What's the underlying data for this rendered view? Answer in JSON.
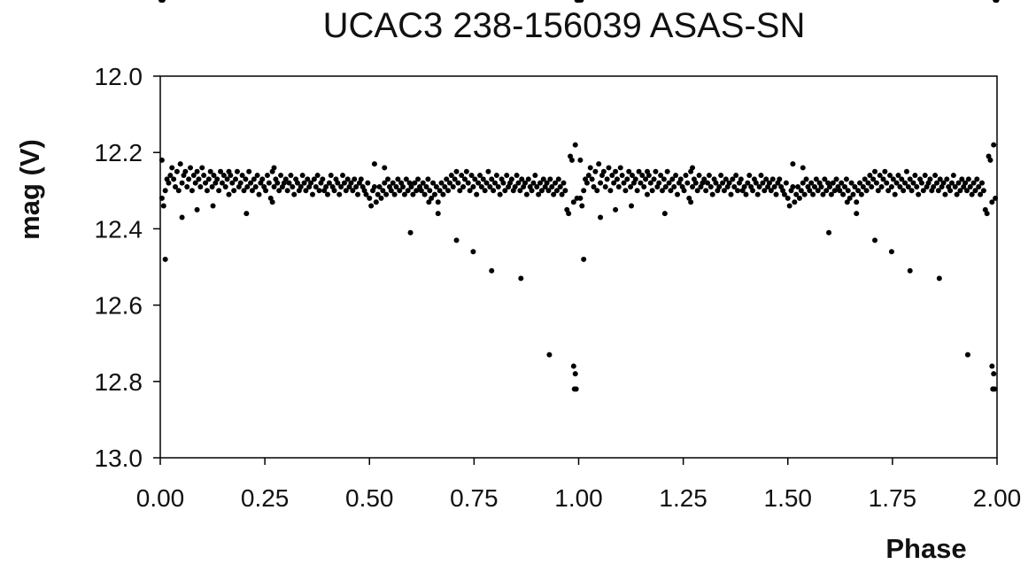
{
  "chart_data": {
    "type": "scatter",
    "title": "UCAC3 238-156039 ASAS-SN",
    "xlabel": "Phase",
    "ylabel": "mag (V)",
    "xlim": [
      0.0,
      2.0
    ],
    "ylim": [
      12.0,
      13.0
    ],
    "y_inverted": true,
    "grid": false,
    "legend": "none",
    "marker_color": "#000000",
    "axis_color": "#000000",
    "x_ticks": [
      "0.00",
      "0.25",
      "0.50",
      "0.75",
      "1.00",
      "1.25",
      "1.50",
      "1.75",
      "2.00"
    ],
    "x_tick_values": [
      0.0,
      0.25,
      0.5,
      0.75,
      1.0,
      1.25,
      1.5,
      1.75,
      2.0
    ],
    "y_ticks": [
      "12.0",
      "12.2",
      "12.4",
      "12.6",
      "12.8",
      "13.0"
    ],
    "y_tick_values": [
      12.0,
      12.2,
      12.4,
      12.6,
      12.8,
      13.0
    ],
    "series": [
      {
        "phase": [
          0.004,
          0.008,
          0.012,
          0.016,
          0.02,
          0.024,
          0.028,
          0.032,
          0.036,
          0.04,
          0.044,
          0.048,
          0.052,
          0.056,
          0.06,
          0.064,
          0.068,
          0.072,
          0.076,
          0.08,
          0.084,
          0.088,
          0.092,
          0.096,
          0.1,
          0.104,
          0.108,
          0.112,
          0.116,
          0.12,
          0.124,
          0.128,
          0.132,
          0.136,
          0.14,
          0.144,
          0.148,
          0.152,
          0.156,
          0.16,
          0.164,
          0.168,
          0.172,
          0.176,
          0.18,
          0.184,
          0.188,
          0.192,
          0.196,
          0.2,
          0.204,
          0.208,
          0.212,
          0.216,
          0.22,
          0.224,
          0.228,
          0.232,
          0.236,
          0.24,
          0.244,
          0.248,
          0.252,
          0.256,
          0.26,
          0.264,
          0.268,
          0.272,
          0.276,
          0.28,
          0.284,
          0.288,
          0.292,
          0.296,
          0.3,
          0.304,
          0.308,
          0.312,
          0.316,
          0.32,
          0.324,
          0.328,
          0.332,
          0.336,
          0.34,
          0.344,
          0.348,
          0.352,
          0.356,
          0.36,
          0.364,
          0.368,
          0.372,
          0.376,
          0.38,
          0.384,
          0.388,
          0.392,
          0.396,
          0.4,
          0.404,
          0.408,
          0.412,
          0.416,
          0.42,
          0.424,
          0.428,
          0.432,
          0.436,
          0.44,
          0.444,
          0.448,
          0.452,
          0.456,
          0.46,
          0.464,
          0.468,
          0.472,
          0.476,
          0.48,
          0.484,
          0.488,
          0.492,
          0.496,
          0.5,
          0.504,
          0.508,
          0.512,
          0.516,
          0.52,
          0.524,
          0.528,
          0.532,
          0.536,
          0.54,
          0.544,
          0.548,
          0.552,
          0.556,
          0.56,
          0.564,
          0.568,
          0.572,
          0.576,
          0.58,
          0.584,
          0.588,
          0.592,
          0.596,
          0.6,
          0.604,
          0.608,
          0.612,
          0.616,
          0.62,
          0.624,
          0.628,
          0.632,
          0.636,
          0.64,
          0.644,
          0.648,
          0.652,
          0.656,
          0.66,
          0.664,
          0.668,
          0.672,
          0.676,
          0.68,
          0.684,
          0.688,
          0.692,
          0.696,
          0.7,
          0.704,
          0.708,
          0.712,
          0.716,
          0.72,
          0.724,
          0.728,
          0.732,
          0.736,
          0.74,
          0.744,
          0.748,
          0.752,
          0.756,
          0.76,
          0.764,
          0.768,
          0.772,
          0.776,
          0.78,
          0.784,
          0.788,
          0.792,
          0.796,
          0.8,
          0.804,
          0.808,
          0.812,
          0.816,
          0.82,
          0.824,
          0.828,
          0.832,
          0.836,
          0.84,
          0.844,
          0.848,
          0.852,
          0.856,
          0.86,
          0.864,
          0.868,
          0.872,
          0.876,
          0.88,
          0.884,
          0.888,
          0.892,
          0.896,
          0.9,
          0.904,
          0.908,
          0.912,
          0.916,
          0.92,
          0.924,
          0.928,
          0.932,
          0.936,
          0.94,
          0.944,
          0.948,
          0.952,
          0.956,
          0.96,
          0.964,
          0.968,
          0.972,
          0.976,
          0.98,
          0.984,
          0.988,
          0.992,
          0.996,
          0.004,
          0.012,
          0.052,
          0.088,
          0.126,
          0.164,
          0.206,
          0.268,
          0.272,
          0.512,
          0.536,
          0.598,
          0.642,
          0.664,
          0.708,
          0.748,
          0.792,
          0.862,
          0.93,
          0.988,
          0.99,
          0.992,
          0.994,
          0.996,
          0.998,
          0.999,
          0.999,
          0.999,
          0.002,
          0.006
        ],
        "mag": [
          12.32,
          12.34,
          12.3,
          12.27,
          12.28,
          12.26,
          12.24,
          12.27,
          12.29,
          12.25,
          12.3,
          12.23,
          12.28,
          12.26,
          12.25,
          12.29,
          12.27,
          12.24,
          12.3,
          12.26,
          12.28,
          12.25,
          12.27,
          12.29,
          12.24,
          12.26,
          12.28,
          12.3,
          12.27,
          12.25,
          12.29,
          12.26,
          12.28,
          12.27,
          12.3,
          12.25,
          12.28,
          12.26,
          12.29,
          12.27,
          12.31,
          12.26,
          12.28,
          12.3,
          12.27,
          12.25,
          12.29,
          12.28,
          12.26,
          12.3,
          12.27,
          12.29,
          12.25,
          12.28,
          12.3,
          12.27,
          12.29,
          12.26,
          12.31,
          12.28,
          12.27,
          12.29,
          12.3,
          12.26,
          12.28,
          12.32,
          12.25,
          12.29,
          12.27,
          12.28,
          12.3,
          12.26,
          12.29,
          12.28,
          12.27,
          12.3,
          12.28,
          12.26,
          12.29,
          12.31,
          12.27,
          12.28,
          12.3,
          12.29,
          12.26,
          12.28,
          12.3,
          12.27,
          12.29,
          12.28,
          12.31,
          12.27,
          12.29,
          12.26,
          12.3,
          12.28,
          12.27,
          12.3,
          12.29,
          12.31,
          12.28,
          12.26,
          12.29,
          12.3,
          12.27,
          12.28,
          12.31,
          12.29,
          12.26,
          12.28,
          12.3,
          12.27,
          12.29,
          12.28,
          12.3,
          12.27,
          12.29,
          12.31,
          12.28,
          12.27,
          12.29,
          12.3,
          12.31,
          12.28,
          12.32,
          12.34,
          12.3,
          12.29,
          12.33,
          12.31,
          12.29,
          12.32,
          12.3,
          12.28,
          12.31,
          12.27,
          12.29,
          12.3,
          12.28,
          12.31,
          12.29,
          12.27,
          12.3,
          12.28,
          12.29,
          12.31,
          12.27,
          12.3,
          12.28,
          12.29,
          12.31,
          12.28,
          12.3,
          12.27,
          12.29,
          12.3,
          12.28,
          12.31,
          12.29,
          12.27,
          12.3,
          12.32,
          12.28,
          12.31,
          12.29,
          12.33,
          12.3,
          12.28,
          12.31,
          12.29,
          12.27,
          12.3,
          12.28,
          12.26,
          12.29,
          12.27,
          12.25,
          12.28,
          12.3,
          12.26,
          12.29,
          12.27,
          12.25,
          12.28,
          12.3,
          12.26,
          12.29,
          12.27,
          12.31,
          12.28,
          12.26,
          12.29,
          12.27,
          12.3,
          12.28,
          12.25,
          12.29,
          12.27,
          12.3,
          12.28,
          12.26,
          12.29,
          12.31,
          12.27,
          12.28,
          12.3,
          12.26,
          12.29,
          12.28,
          12.27,
          12.3,
          12.29,
          12.26,
          12.28,
          12.3,
          12.27,
          12.29,
          12.28,
          12.31,
          12.27,
          12.29,
          12.3,
          12.28,
          12.26,
          12.29,
          12.31,
          12.28,
          12.3,
          12.27,
          12.29,
          12.28,
          12.3,
          12.27,
          12.29,
          12.31,
          12.28,
          12.3,
          12.27,
          12.29,
          12.31,
          12.28,
          12.3,
          12.35,
          12.36,
          12.21,
          12.22,
          12.33,
          12.18,
          12.32,
          12.22,
          12.48,
          12.37,
          12.35,
          12.34,
          12.25,
          12.36,
          12.33,
          12.24,
          12.23,
          12.24,
          12.41,
          12.33,
          12.36,
          12.43,
          12.46,
          12.51,
          12.53,
          12.73,
          12.76,
          12.82,
          12.78,
          12.82
        ]
      }
    ]
  }
}
